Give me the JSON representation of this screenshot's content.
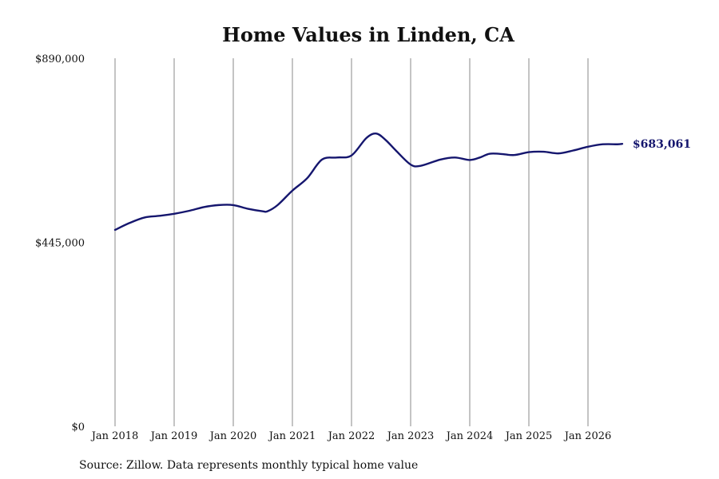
{
  "chart_data": {
    "type": "line",
    "title": "Home Values in Linden, CA",
    "xlabel": "",
    "ylabel": "",
    "ylim": [
      0,
      890000
    ],
    "yticks": [
      {
        "value": 0,
        "label": "$0"
      },
      {
        "value": 445000,
        "label": "$445,000"
      },
      {
        "value": 890000,
        "label": "$890,000"
      }
    ],
    "xticks": [
      {
        "value": 2018,
        "label": "Jan 2018"
      },
      {
        "value": 2019,
        "label": "Jan 2019"
      },
      {
        "value": 2020,
        "label": "Jan 2020"
      },
      {
        "value": 2021,
        "label": "Jan 2021"
      },
      {
        "value": 2022,
        "label": "Jan 2022"
      },
      {
        "value": 2023,
        "label": "Jan 2023"
      },
      {
        "value": 2024,
        "label": "Jan 2024"
      },
      {
        "value": 2025,
        "label": "Jan 2025"
      },
      {
        "value": 2026,
        "label": "Jan 2026"
      }
    ],
    "grid": "vertical",
    "series": [
      {
        "color": "#15166e",
        "end_label": "$683,061",
        "x": [
          2018.0,
          2018.25,
          2018.5,
          2018.75,
          2019.0,
          2019.25,
          2019.5,
          2019.75,
          2020.0,
          2020.25,
          2020.5,
          2020.58,
          2020.75,
          2021.0,
          2021.25,
          2021.5,
          2021.75,
          2022.0,
          2022.25,
          2022.42,
          2022.58,
          2022.75,
          2023.0,
          2023.17,
          2023.5,
          2023.75,
          2024.0,
          2024.17,
          2024.33,
          2024.5,
          2024.75,
          2025.0,
          2025.25,
          2025.5,
          2025.75,
          2026.0,
          2026.25,
          2026.5,
          2026.58
        ],
        "values": [
          475000,
          492000,
          505000,
          509000,
          514000,
          521000,
          530000,
          535000,
          535000,
          526000,
          520000,
          520000,
          535000,
          570000,
          600000,
          645000,
          650000,
          655000,
          697000,
          708000,
          692000,
          667000,
          633000,
          630000,
          645000,
          650000,
          644000,
          650000,
          659000,
          659000,
          656000,
          663000,
          664000,
          660000,
          667000,
          676000,
          682000,
          682000,
          683061
        ]
      }
    ]
  },
  "source": "Source: Zillow. Data represents monthly typical home value"
}
